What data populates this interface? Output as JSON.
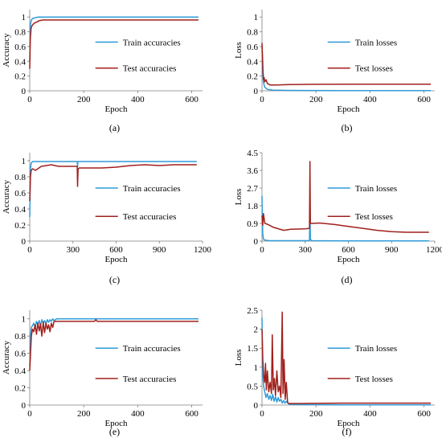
{
  "colors": {
    "train": "#2f9bd8",
    "test": "#a0201c",
    "axis": "#7f7f7f"
  },
  "chart_data": [
    {
      "type": "line",
      "panel_label": "(a)",
      "xlabel": "Epoch",
      "ylabel": "Accuracy",
      "xlim": [
        0,
        640
      ],
      "ylim": [
        0,
        1.1
      ],
      "xticks": [
        0,
        200,
        400,
        600
      ],
      "xtick_labels": [
        "0",
        "200",
        "400",
        "600"
      ],
      "yticks": [
        0,
        0.2,
        0.4,
        0.6,
        0.8,
        1
      ],
      "ytick_labels": [
        "0",
        "0.2",
        "0.4",
        "0.6",
        "0.8",
        "1"
      ],
      "legend_position": "center-right",
      "series": [
        {
          "name": "Train accuracies",
          "x": [
            0,
            2,
            5,
            10,
            20,
            30,
            50,
            100,
            200,
            400,
            625
          ],
          "y": [
            0.4,
            0.88,
            0.95,
            0.98,
            0.99,
            1.0,
            1.0,
            1.0,
            1.0,
            1.0,
            1.0
          ]
        },
        {
          "name": "Test accuracies",
          "x": [
            0,
            2,
            5,
            8,
            12,
            18,
            25,
            35,
            50,
            100,
            200,
            400,
            625
          ],
          "y": [
            0.3,
            0.7,
            0.85,
            0.88,
            0.9,
            0.92,
            0.93,
            0.95,
            0.96,
            0.96,
            0.96,
            0.96,
            0.96
          ]
        }
      ]
    },
    {
      "type": "line",
      "panel_label": "(b)",
      "xlabel": "Epoch",
      "ylabel": "Loss",
      "xlim": [
        0,
        640
      ],
      "ylim": [
        0,
        1.1
      ],
      "xticks": [
        0,
        200,
        400,
        600
      ],
      "xtick_labels": [
        "0",
        "200",
        "400",
        "600"
      ],
      "yticks": [
        0,
        0.2,
        0.4,
        0.6,
        0.8,
        1
      ],
      "ytick_labels": [
        "0",
        "0.2",
        "0.4",
        "0.6",
        "0.8",
        "1"
      ],
      "legend_position": "center-right",
      "series": [
        {
          "name": "Train losses",
          "x": [
            0,
            2,
            5,
            10,
            20,
            40,
            100,
            300,
            625
          ],
          "y": [
            0.6,
            0.3,
            0.12,
            0.05,
            0.02,
            0.01,
            0.005,
            0.003,
            0.002
          ]
        },
        {
          "name": "Test losses",
          "x": [
            0,
            2,
            4,
            6,
            8,
            10,
            15,
            20,
            30,
            50,
            100,
            200,
            400,
            625
          ],
          "y": [
            0.65,
            0.45,
            0.25,
            0.15,
            0.18,
            0.12,
            0.15,
            0.1,
            0.08,
            0.08,
            0.085,
            0.088,
            0.09,
            0.09
          ]
        }
      ]
    },
    {
      "type": "line",
      "panel_label": "(c)",
      "xlabel": "Epoch",
      "ylabel": "Accuracy",
      "xlim": [
        0,
        1200
      ],
      "ylim": [
        0,
        1.1
      ],
      "xticks": [
        0,
        300,
        600,
        900,
        1200
      ],
      "xtick_labels": [
        "0",
        "300",
        "600",
        "900",
        "1200"
      ],
      "yticks": [
        0,
        0.2,
        0.4,
        0.6,
        0.8,
        1
      ],
      "ytick_labels": [
        "0",
        "0.2",
        "0.4",
        "0.6",
        "0.8",
        "1"
      ],
      "legend_position": "center-right",
      "series": [
        {
          "name": "Train accuracies",
          "x": [
            0,
            5,
            10,
            20,
            330,
            332,
            334,
            340,
            600,
            900,
            1160
          ],
          "y": [
            0.3,
            0.9,
            0.97,
            0.99,
            0.99,
            0.93,
            0.99,
            0.99,
            0.99,
            0.99,
            0.99
          ]
        },
        {
          "name": "Test accuracies",
          "x": [
            0,
            5,
            10,
            20,
            40,
            80,
            150,
            200,
            330,
            332,
            336,
            345,
            400,
            500,
            600,
            650,
            700,
            800,
            900,
            1000,
            1160
          ],
          "y": [
            0.5,
            0.8,
            0.88,
            0.9,
            0.88,
            0.93,
            0.95,
            0.93,
            0.93,
            0.68,
            0.9,
            0.91,
            0.91,
            0.91,
            0.92,
            0.93,
            0.94,
            0.95,
            0.94,
            0.95,
            0.95
          ]
        }
      ]
    },
    {
      "type": "line",
      "panel_label": "(d)",
      "xlabel": "Epoch",
      "ylabel": "Loss",
      "xlim": [
        0,
        1200
      ],
      "ylim": [
        0,
        4.5
      ],
      "xticks": [
        0,
        300,
        600,
        900,
        1200
      ],
      "xtick_labels": [
        "0",
        "300",
        "600",
        "900",
        "1200"
      ],
      "yticks": [
        0,
        0.9,
        1.8,
        2.7,
        3.6,
        4.5
      ],
      "ytick_labels": [
        "0",
        "0.9",
        "1.8",
        "2.7",
        "3.6",
        "4.5"
      ],
      "legend_position": "center-right",
      "series": [
        {
          "name": "Train losses",
          "x": [
            0,
            5,
            10,
            20,
            50,
            330,
            333,
            336,
            345,
            600,
            900,
            1160
          ],
          "y": [
            2.3,
            0.4,
            0.1,
            0.05,
            0.02,
            0.02,
            1.9,
            0.1,
            0.02,
            0.01,
            0.01,
            0.01
          ]
        },
        {
          "name": "Test losses",
          "x": [
            0,
            5,
            10,
            20,
            40,
            80,
            150,
            200,
            300,
            330,
            333,
            336,
            345,
            400,
            500,
            600,
            700,
            800,
            900,
            1000,
            1160
          ],
          "y": [
            1.3,
            0.8,
            1.4,
            0.9,
            0.85,
            0.7,
            0.55,
            0.6,
            0.62,
            0.65,
            4.05,
            0.9,
            0.9,
            0.92,
            0.85,
            0.75,
            0.65,
            0.55,
            0.48,
            0.45,
            0.45
          ]
        }
      ]
    },
    {
      "type": "line",
      "panel_label": "(e)",
      "xlabel": "Epoch",
      "ylabel": "Accuracy",
      "xlim": [
        0,
        640
      ],
      "ylim": [
        0,
        1.1
      ],
      "xticks": [
        0,
        200,
        400,
        600
      ],
      "xtick_labels": [
        "0",
        "200",
        "400",
        "600"
      ],
      "yticks": [
        0,
        0.2,
        0.4,
        0.6,
        0.8,
        1
      ],
      "ytick_labels": [
        "0",
        "0.2",
        "0.4",
        "0.6",
        "0.8",
        "1"
      ],
      "legend_position": "center-right",
      "series": [
        {
          "name": "Train accuracies",
          "x": [
            0,
            3,
            6,
            10,
            15,
            20,
            25,
            30,
            35,
            40,
            45,
            50,
            55,
            60,
            65,
            70,
            75,
            80,
            85,
            90,
            100,
            150,
            200,
            400,
            625
          ],
          "y": [
            0.45,
            0.8,
            0.9,
            0.92,
            0.95,
            0.9,
            0.97,
            0.93,
            0.98,
            0.92,
            0.99,
            0.95,
            0.98,
            0.94,
            0.99,
            0.96,
            0.99,
            0.97,
            1.0,
            0.98,
            1.0,
            1.0,
            1.0,
            1.0,
            1.0
          ]
        },
        {
          "name": "Test accuracies",
          "x": [
            0,
            3,
            6,
            10,
            15,
            20,
            25,
            30,
            35,
            40,
            45,
            50,
            55,
            60,
            65,
            70,
            75,
            80,
            85,
            90,
            100,
            150,
            240,
            245,
            250,
            400,
            625
          ],
          "y": [
            0.4,
            0.6,
            0.8,
            0.88,
            0.85,
            0.93,
            0.82,
            0.95,
            0.86,
            0.94,
            0.8,
            0.96,
            0.84,
            0.95,
            0.88,
            0.93,
            0.85,
            0.95,
            0.9,
            0.97,
            0.97,
            0.97,
            0.97,
            0.99,
            0.97,
            0.97,
            0.97
          ]
        }
      ]
    },
    {
      "type": "line",
      "panel_label": "(f)",
      "xlabel": "Epoch",
      "ylabel": "Loss",
      "xlim": [
        0,
        640
      ],
      "ylim": [
        0,
        2.5
      ],
      "xticks": [
        0,
        200,
        400,
        600
      ],
      "xtick_labels": [
        "0",
        "200",
        "400",
        "600"
      ],
      "yticks": [
        0,
        0.5,
        1,
        1.5,
        2,
        2.5
      ],
      "ytick_labels": [
        "0",
        "0.5",
        "1",
        "1.5",
        "2",
        "2.5"
      ],
      "legend_position": "center-right",
      "series": [
        {
          "name": "Train losses",
          "x": [
            0,
            3,
            6,
            10,
            15,
            20,
            25,
            30,
            35,
            40,
            45,
            50,
            55,
            60,
            65,
            70,
            75,
            80,
            85,
            90,
            100,
            150,
            300,
            625
          ],
          "y": [
            2.3,
            0.8,
            0.5,
            0.35,
            0.2,
            0.3,
            0.15,
            0.25,
            0.12,
            0.28,
            0.1,
            0.22,
            0.08,
            0.2,
            0.1,
            0.15,
            0.05,
            0.12,
            0.05,
            0.1,
            0.02,
            0.01,
            0.005,
            0.005
          ]
        },
        {
          "name": "Test losses",
          "x": [
            0,
            3,
            6,
            10,
            13,
            16,
            20,
            25,
            30,
            35,
            38,
            42,
            46,
            50,
            55,
            60,
            65,
            70,
            75,
            78,
            82,
            86,
            90,
            95,
            100,
            150,
            300,
            625
          ],
          "y": [
            2.0,
            1.2,
            0.8,
            0.6,
            1.1,
            0.4,
            0.9,
            0.35,
            0.6,
            0.3,
            1.85,
            0.4,
            0.7,
            0.25,
            0.9,
            0.35,
            0.5,
            0.2,
            2.45,
            0.3,
            1.2,
            0.15,
            0.6,
            0.06,
            0.04,
            0.04,
            0.05,
            0.05
          ]
        }
      ]
    }
  ]
}
